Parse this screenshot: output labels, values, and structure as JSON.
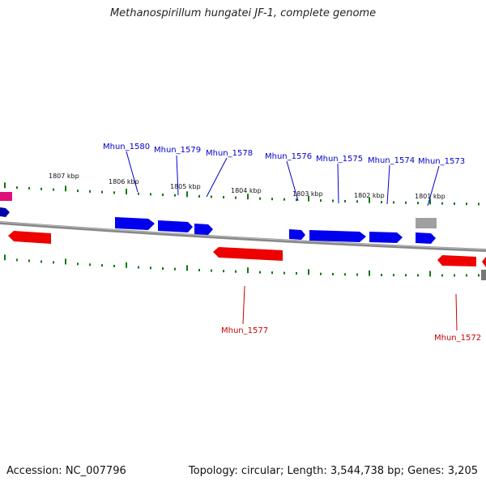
{
  "title": "Methanospirillum hungatei JF-1, complete genome",
  "footer": {
    "accession": "Accession: NC_007796",
    "stats": "Topology: circular; Length: 3,544,738 bp; Genes: 3,205"
  },
  "colors": {
    "forward_gene": "#0000ee",
    "reverse_gene": "#ee0000",
    "other_gene": "#e0107a",
    "grey_gene": "#a0a0a0",
    "backbone": "#888888",
    "tick": "#117711",
    "forward_label": "#0000cc",
    "reverse_label": "#cc0000"
  },
  "ticks_top": [
    "1807 kbp",
    "1806 kbp",
    "1805 kbp",
    "1804 kbp",
    "1803 kbp",
    "1802 kbp",
    "1801 kbp"
  ],
  "forward_genes": [
    "Mhun_1580",
    "Mhun_1579",
    "Mhun_1578",
    "Mhun_1576",
    "Mhun_1575",
    "Mhun_1574",
    "Mhun_1573"
  ],
  "reverse_genes": [
    "Mhun_1577",
    "Mhun_1572"
  ]
}
